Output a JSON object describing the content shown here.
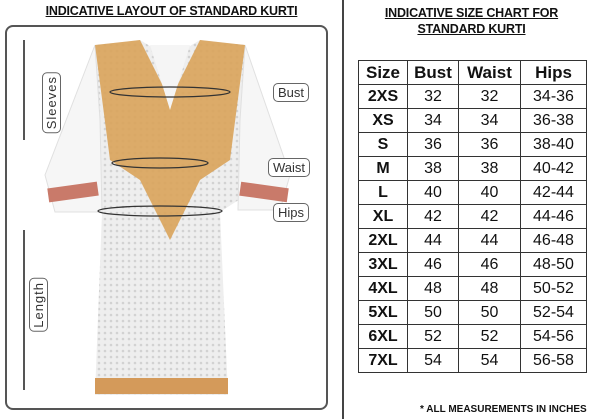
{
  "layout": {
    "title": "INDICATIVE LAYOUT OF STANDARD KURTI",
    "labels": {
      "bust": "Bust",
      "waist": "Waist",
      "hips": "Hips",
      "sleeves": "Sleeves",
      "length": "Length"
    }
  },
  "size_chart": {
    "title_line1": "INDICATIVE SIZE CHART FOR",
    "title_line2": "STANDARD KURTI",
    "headers": [
      "Size",
      "Bust",
      "Waist",
      "Hips"
    ],
    "rows": [
      [
        "2XS",
        "32",
        "32",
        "34-36"
      ],
      [
        "XS",
        "34",
        "34",
        "36-38"
      ],
      [
        "S",
        "36",
        "36",
        "38-40"
      ],
      [
        "M",
        "38",
        "38",
        "40-42"
      ],
      [
        "L",
        "40",
        "40",
        "42-44"
      ],
      [
        "XL",
        "42",
        "42",
        "44-46"
      ],
      [
        "2XL",
        "44",
        "44",
        "46-48"
      ],
      [
        "3XL",
        "46",
        "46",
        "48-50"
      ],
      [
        "4XL",
        "48",
        "48",
        "50-52"
      ],
      [
        "5XL",
        "50",
        "50",
        "52-54"
      ],
      [
        "6XL",
        "52",
        "52",
        "54-56"
      ],
      [
        "7XL",
        "54",
        "54",
        "56-58"
      ]
    ],
    "footnote": "* ALL MEASUREMENTS IN INCHES"
  },
  "colors": {
    "embroidery": "#d9a35a",
    "fabric": "#f2f2f2"
  }
}
